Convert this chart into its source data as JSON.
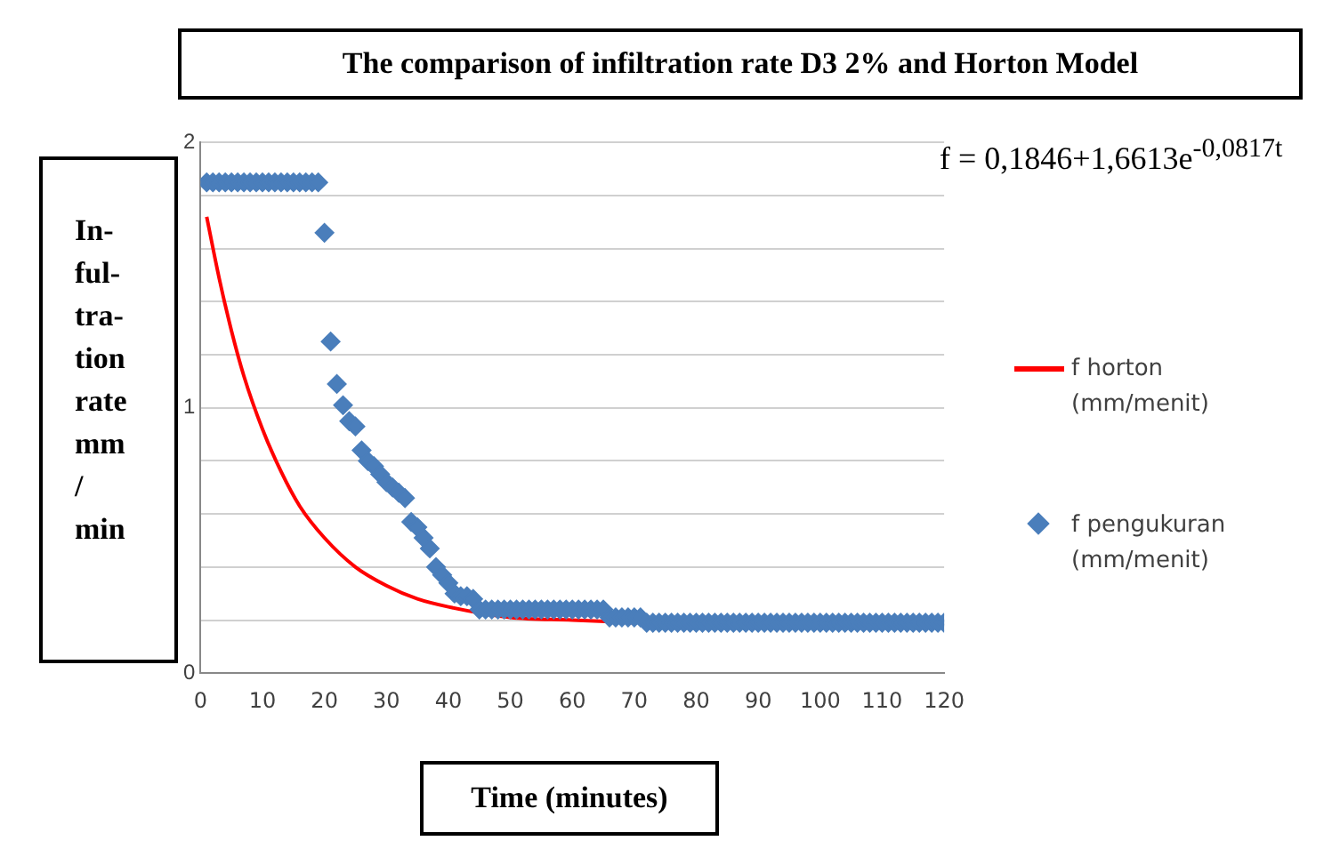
{
  "chart_data": {
    "type": "scatter",
    "title": "The comparison of infiltration rate D3 2% and Horton Model",
    "xlabel": "Time (minutes)",
    "ylabel": "In- ful- tra- tion rate mm / min",
    "annotations": [
      "f = 0,1846+1,6613e$^{-0,0817t}$"
    ],
    "xlim": [
      0,
      120
    ],
    "xticks": [
      0,
      10,
      20,
      30,
      40,
      50,
      60,
      70,
      80,
      90,
      100,
      110,
      120
    ],
    "ylim": [
      0,
      2
    ],
    "yticks": [
      0,
      {
        "value": 0.2,
        "label": null
      },
      {
        "value": 0.4,
        "label": null
      },
      {
        "value": 0.6,
        "label": null
      },
      {
        "value": 0.8,
        "label": null
      },
      1,
      {
        "value": 1.2,
        "label": null
      },
      {
        "value": 1.4,
        "label": null
      },
      {
        "value": 1.6,
        "label": null
      },
      {
        "value": 1.8,
        "label": null
      },
      2
    ],
    "grid": "y",
    "legend": "right",
    "series": [
      {
        "name": "f horton (mm/menit)",
        "type": "line",
        "marker": "none",
        "color": "#ff0000",
        "x": [
          1,
          3,
          5,
          7,
          10,
          13,
          16,
          20,
          25,
          30,
          35,
          40,
          50,
          60,
          70
        ],
        "values": [
          1.72,
          1.49,
          1.29,
          1.12,
          0.92,
          0.76,
          0.63,
          0.51,
          0.4,
          0.33,
          0.28,
          0.25,
          0.21,
          0.2,
          0.19
        ]
      },
      {
        "name": "f pengukuran (mm/menit)",
        "marker": "diamond",
        "color": "#4a7ebb",
        "x": [
          1,
          2,
          3,
          4,
          5,
          6,
          7,
          8,
          9,
          10,
          11,
          12,
          13,
          14,
          15,
          16,
          17,
          18,
          19,
          20,
          21,
          22,
          23,
          24,
          25,
          26,
          27,
          28,
          29,
          30,
          31,
          32,
          33,
          34,
          35,
          36,
          37,
          38,
          39,
          40,
          41,
          42,
          43,
          44,
          45,
          46,
          47,
          48,
          49,
          50,
          51,
          52,
          53,
          54,
          55,
          56,
          57,
          58,
          59,
          60,
          61,
          62,
          63,
          64,
          65,
          66,
          67,
          68,
          69,
          70,
          71,
          72,
          73,
          74,
          75,
          76,
          77,
          78,
          79,
          80,
          81,
          82,
          83,
          84,
          85,
          86,
          87,
          88,
          89,
          90,
          91,
          92,
          93,
          94,
          95,
          96,
          97,
          98,
          99,
          100,
          101,
          102,
          103,
          104,
          105,
          106,
          107,
          108,
          109,
          110,
          111,
          112,
          113,
          114,
          115,
          116,
          117,
          118,
          119,
          120
        ],
        "values": [
          1.85,
          1.85,
          1.85,
          1.85,
          1.85,
          1.85,
          1.85,
          1.85,
          1.85,
          1.85,
          1.85,
          1.85,
          1.85,
          1.85,
          1.85,
          1.85,
          1.85,
          1.85,
          1.85,
          1.66,
          1.25,
          1.09,
          1.01,
          0.95,
          0.93,
          0.84,
          0.8,
          0.78,
          0.75,
          0.72,
          0.7,
          0.68,
          0.66,
          0.57,
          0.55,
          0.51,
          0.47,
          0.4,
          0.37,
          0.34,
          0.3,
          0.29,
          0.29,
          0.28,
          0.24,
          0.24,
          0.24,
          0.24,
          0.24,
          0.24,
          0.24,
          0.24,
          0.24,
          0.24,
          0.24,
          0.24,
          0.24,
          0.24,
          0.24,
          0.24,
          0.24,
          0.24,
          0.24,
          0.24,
          0.24,
          0.21,
          0.21,
          0.21,
          0.21,
          0.21,
          0.21,
          0.19,
          0.19,
          0.19,
          0.19,
          0.19,
          0.19,
          0.19,
          0.19,
          0.19,
          0.19,
          0.19,
          0.19,
          0.19,
          0.19,
          0.19,
          0.19,
          0.19,
          0.19,
          0.19,
          0.19,
          0.19,
          0.19,
          0.19,
          0.19,
          0.19,
          0.19,
          0.19,
          0.19,
          0.19,
          0.19,
          0.19,
          0.19,
          0.19,
          0.19,
          0.19,
          0.19,
          0.19,
          0.19,
          0.19,
          0.19,
          0.19,
          0.19,
          0.19,
          0.19,
          0.19,
          0.19,
          0.19,
          0.19,
          0.19
        ]
      }
    ]
  }
}
